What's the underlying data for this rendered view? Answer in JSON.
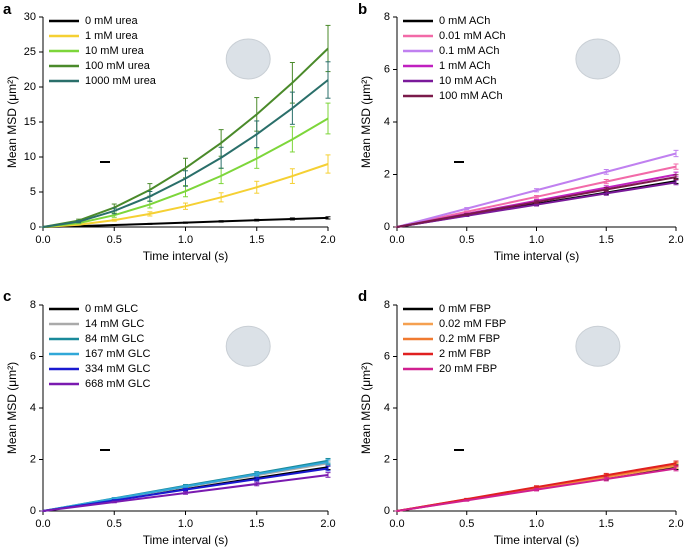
{
  "chart_data": [
    {
      "type": "line",
      "label": "a",
      "xlabel": "Time interval (s)",
      "ylabel": "Mean MSD (μm²)",
      "legend": "upper left",
      "x": [
        0,
        0.25,
        0.5,
        0.75,
        1,
        1.25,
        1.5,
        1.75,
        2
      ],
      "xlim": [
        0,
        2
      ],
      "xticks": [
        {
          "value": 0,
          "label": "0.0"
        },
        {
          "value": 0.5,
          "label": "0.5"
        },
        {
          "value": 1,
          "label": "1.0"
        },
        {
          "value": 1.5,
          "label": "1.5"
        },
        {
          "value": 2,
          "label": "2.0"
        }
      ],
      "ylim": [
        0,
        30
      ],
      "yticks": [
        0,
        5,
        10,
        15,
        20,
        25,
        30
      ],
      "series": [
        {
          "name": "0 mM urea",
          "color": "#000000",
          "values": [
            0,
            0.12,
            0.28,
            0.45,
            0.62,
            0.8,
            0.98,
            1.15,
            1.3
          ],
          "errors": [
            0,
            0.02,
            0.04,
            0.06,
            0.08,
            0.1,
            0.12,
            0.14,
            0.16
          ]
        },
        {
          "name": "1 mM urea",
          "color": "#f5d033",
          "values": [
            0,
            0.32,
            0.98,
            1.87,
            2.97,
            4.24,
            5.68,
            7.27,
            9
          ],
          "errors": [
            0,
            0.05,
            0.15,
            0.3,
            0.45,
            0.65,
            0.85,
            1.05,
            1.3
          ]
        },
        {
          "name": "10 mM urea",
          "color": "#7dd63a",
          "values": [
            0,
            0.56,
            1.69,
            3.22,
            5.12,
            7.3,
            9.78,
            12.52,
            15.5
          ],
          "errors": [
            0,
            0.1,
            0.3,
            0.5,
            0.8,
            1.1,
            1.4,
            1.8,
            2.2
          ]
        },
        {
          "name": "100 mM urea",
          "color": "#4a8a2a",
          "values": [
            0,
            0.92,
            2.78,
            5.3,
            8.42,
            12.01,
            16.09,
            20.6,
            25.5
          ],
          "errors": [
            0,
            0.2,
            0.5,
            0.9,
            1.4,
            1.9,
            2.4,
            2.9,
            3.3
          ]
        },
        {
          "name": "1000 mM urea",
          "color": "#2a6f6a",
          "values": [
            0,
            0.76,
            2.29,
            4.37,
            6.93,
            9.89,
            13.25,
            16.97,
            21
          ],
          "errors": [
            0,
            0.15,
            0.4,
            0.7,
            1.1,
            1.5,
            1.9,
            2.3,
            2.6
          ]
        }
      ]
    },
    {
      "type": "line",
      "label": "b",
      "xlabel": "Time interval (s)",
      "ylabel": "Mean MSD (μm²)",
      "legend": "upper left",
      "x": [
        0,
        0.5,
        1,
        1.5,
        2
      ],
      "xlim": [
        0,
        2
      ],
      "xticks": [
        {
          "value": 0,
          "label": "0.0"
        },
        {
          "value": 0.5,
          "label": "0.5"
        },
        {
          "value": 1,
          "label": "1.0"
        },
        {
          "value": 1.5,
          "label": "1.5"
        },
        {
          "value": 2,
          "label": "2.0"
        }
      ],
      "ylim": [
        0,
        8
      ],
      "yticks": [
        0,
        2,
        4,
        6,
        8
      ],
      "series": [
        {
          "name": "0 mM ACh",
          "color": "#000000",
          "values": [
            0,
            0.44,
            0.88,
            1.31,
            1.75
          ],
          "errors": [
            0,
            0.03,
            0.05,
            0.07,
            0.09
          ]
        },
        {
          "name": "0.01 mM ACh",
          "color": "#f26aa8",
          "values": [
            0,
            0.58,
            1.15,
            1.73,
            2.3
          ],
          "errors": [
            0,
            0.03,
            0.05,
            0.08,
            0.1
          ]
        },
        {
          "name": "0.1 mM ACh",
          "color": "#c080f0",
          "values": [
            0,
            0.7,
            1.4,
            2.1,
            2.8
          ],
          "errors": [
            0,
            0.04,
            0.06,
            0.09,
            0.12
          ]
        },
        {
          "name": "1 mM ACh",
          "color": "#c020c0",
          "values": [
            0,
            0.5,
            1,
            1.5,
            2
          ],
          "errors": [
            0,
            0.03,
            0.05,
            0.07,
            0.09
          ]
        },
        {
          "name": "10 mM ACh",
          "color": "#7a1a9a",
          "values": [
            0,
            0.43,
            0.85,
            1.28,
            1.7
          ],
          "errors": [
            0,
            0.03,
            0.05,
            0.07,
            0.09
          ]
        },
        {
          "name": "100 mM ACh",
          "color": "#7a1a4a",
          "values": [
            0,
            0.48,
            0.95,
            1.43,
            1.9
          ],
          "errors": [
            0,
            0.03,
            0.05,
            0.07,
            0.09
          ]
        }
      ]
    },
    {
      "type": "line",
      "label": "c",
      "xlabel": "Time interval (s)",
      "ylabel": "Mean MSD (μm²)",
      "legend": "upper left",
      "x": [
        0,
        0.5,
        1,
        1.5,
        2
      ],
      "xlim": [
        0,
        2
      ],
      "xticks": [
        {
          "value": 0,
          "label": "0.0"
        },
        {
          "value": 0.5,
          "label": "0.5"
        },
        {
          "value": 1,
          "label": "1.0"
        },
        {
          "value": 1.5,
          "label": "1.5"
        },
        {
          "value": 2,
          "label": "2.0"
        }
      ],
      "ylim": [
        0,
        8
      ],
      "yticks": [
        0,
        2,
        4,
        6,
        8
      ],
      "series": [
        {
          "name": "0 mM GLC",
          "color": "#000000",
          "values": [
            0,
            0.43,
            0.85,
            1.28,
            1.7
          ],
          "errors": [
            0,
            0.03,
            0.05,
            0.07,
            0.09
          ]
        },
        {
          "name": "14 mM GLC",
          "color": "#aaaaaa",
          "values": [
            0,
            0.46,
            0.93,
            1.39,
            1.85
          ],
          "errors": [
            0,
            0.03,
            0.05,
            0.07,
            0.09
          ]
        },
        {
          "name": "84 mM GLC",
          "color": "#1a8a9a",
          "values": [
            0,
            0.49,
            0.98,
            1.46,
            1.95
          ],
          "errors": [
            0,
            0.03,
            0.05,
            0.07,
            0.09
          ]
        },
        {
          "name": "167 mM GLC",
          "color": "#30a8d8",
          "values": [
            0,
            0.48,
            0.95,
            1.43,
            1.9
          ],
          "errors": [
            0,
            0.03,
            0.05,
            0.07,
            0.09
          ]
        },
        {
          "name": "334 mM GLC",
          "color": "#1a1ad0",
          "values": [
            0,
            0.41,
            0.83,
            1.24,
            1.65
          ],
          "errors": [
            0,
            0.03,
            0.05,
            0.07,
            0.09
          ]
        },
        {
          "name": "668 mM GLC",
          "color": "#7a1ab0",
          "values": [
            0,
            0.35,
            0.7,
            1.05,
            1.4
          ],
          "errors": [
            0,
            0.03,
            0.05,
            0.07,
            0.09
          ]
        }
      ]
    },
    {
      "type": "line",
      "label": "d",
      "xlabel": "Time interval (s)",
      "ylabel": "Mean MSD (μm²)",
      "legend": "upper left",
      "x": [
        0,
        0.5,
        1,
        1.5,
        2
      ],
      "xlim": [
        0,
        2
      ],
      "xticks": [
        {
          "value": 0,
          "label": "0.0"
        },
        {
          "value": 0.5,
          "label": "0.5"
        },
        {
          "value": 1,
          "label": "1.0"
        },
        {
          "value": 1.5,
          "label": "1.5"
        },
        {
          "value": 2,
          "label": "2.0"
        }
      ],
      "ylim": [
        0,
        8
      ],
      "yticks": [
        0,
        2,
        4,
        6,
        8
      ],
      "series": [
        {
          "name": "0 mM FBP",
          "color": "#000000",
          "values": [
            0,
            0.43,
            0.85,
            1.28,
            1.7
          ],
          "errors": [
            0,
            0.03,
            0.05,
            0.07,
            0.09
          ]
        },
        {
          "name": "0.02 mM FBP",
          "color": "#f5a050",
          "values": [
            0,
            0.44,
            0.88,
            1.31,
            1.75
          ],
          "errors": [
            0,
            0.03,
            0.05,
            0.07,
            0.09
          ]
        },
        {
          "name": "0.2 mM FBP",
          "color": "#f07a30",
          "values": [
            0,
            0.45,
            0.9,
            1.35,
            1.8
          ],
          "errors": [
            0,
            0.03,
            0.05,
            0.07,
            0.09
          ]
        },
        {
          "name": "2 mM FBP",
          "color": "#e02020",
          "values": [
            0,
            0.46,
            0.93,
            1.39,
            1.85
          ],
          "errors": [
            0,
            0.03,
            0.05,
            0.07,
            0.09
          ]
        },
        {
          "name": "20 mM FBP",
          "color": "#d02090",
          "values": [
            0,
            0.41,
            0.83,
            1.24,
            1.65
          ],
          "errors": [
            0,
            0.03,
            0.05,
            0.07,
            0.09
          ]
        }
      ]
    }
  ]
}
